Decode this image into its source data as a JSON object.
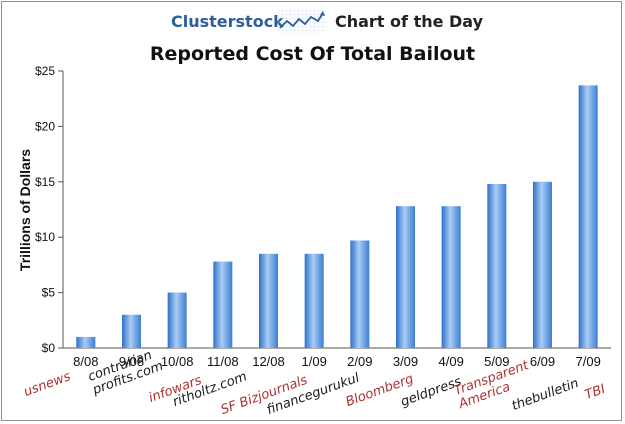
{
  "header": {
    "brand": "Clusterstock",
    "subtitle": "Chart of the Day",
    "logo_icon": "rising-trend-chart-icon"
  },
  "chart_data": {
    "type": "bar",
    "title": "Reported Cost Of Total Bailout",
    "xlabel": "",
    "ylabel": "Trillions of Dollars",
    "ylim": [
      0,
      25
    ],
    "yticks": [
      "$0",
      "$5",
      "$10",
      "$15",
      "$20",
      "$25"
    ],
    "grid": false,
    "categories": [
      "8/08",
      "9/08",
      "10/08",
      "11/08",
      "12/08",
      "1/09",
      "2/09",
      "3/09",
      "4/09",
      "5/09",
      "6/09",
      "7/09"
    ],
    "values": [
      1.0,
      3.0,
      5.0,
      7.8,
      8.5,
      8.5,
      9.7,
      12.8,
      12.8,
      14.8,
      15.0,
      23.7
    ],
    "bar_color": "#4a8ad8",
    "sources": [
      {
        "label": "usnews",
        "color": "red"
      },
      {
        "label": "contrarian profits.com",
        "color": "dark"
      },
      {
        "label": "infowars",
        "color": "red"
      },
      {
        "label": "ritholtz.com",
        "color": "dark"
      },
      {
        "label": "SF Bizjournals",
        "color": "red"
      },
      {
        "label": "financegurukul",
        "color": "dark"
      },
      {
        "label": "Bloomberg",
        "color": "red"
      },
      {
        "label": "geldpress",
        "color": "dark"
      },
      {
        "label": "Transparent America",
        "color": "red"
      },
      {
        "label": "thebulletin",
        "color": "dark"
      },
      {
        "label": "TBI",
        "color": "red"
      }
    ]
  }
}
